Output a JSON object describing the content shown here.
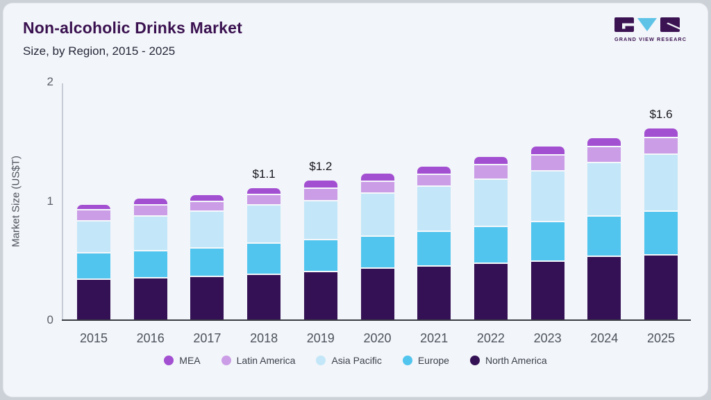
{
  "header": {
    "title": "Non-alcoholic Drinks Market",
    "subtitle": "Size, by Region, 2015 - 2025",
    "brand": {
      "name": "GRAND VIEW RESEARCH",
      "dark_color": "#3b1252",
      "accent_color": "#5fc3e7"
    }
  },
  "chart_data": {
    "type": "bar",
    "stacked": true,
    "title": "Non-alcoholic Drinks Market Size, by Region, 2015 - 2025",
    "xlabel": "",
    "ylabel": "Market Size (US$T)",
    "unit": "US$ trillion",
    "ylim": [
      0,
      2
    ],
    "yticks": [
      0,
      1,
      2
    ],
    "grid": false,
    "legend_position": "bottom",
    "categories": [
      "2015",
      "2016",
      "2017",
      "2018",
      "2019",
      "2020",
      "2021",
      "2022",
      "2023",
      "2024",
      "2025"
    ],
    "series": [
      {
        "name": "MEA",
        "color": "#a34fd1",
        "values": [
          0.05,
          0.06,
          0.06,
          0.06,
          0.07,
          0.07,
          0.07,
          0.07,
          0.08,
          0.08,
          0.08
        ]
      },
      {
        "name": "Latin America",
        "color": "#cb9de7",
        "values": [
          0.09,
          0.09,
          0.08,
          0.09,
          0.1,
          0.1,
          0.1,
          0.12,
          0.13,
          0.13,
          0.14
        ]
      },
      {
        "name": "Asia Pacific",
        "color": "#c3e7f8",
        "values": [
          0.27,
          0.29,
          0.31,
          0.32,
          0.33,
          0.36,
          0.38,
          0.4,
          0.43,
          0.45,
          0.48
        ]
      },
      {
        "name": "Europe",
        "color": "#52c5ef",
        "values": [
          0.22,
          0.23,
          0.24,
          0.26,
          0.27,
          0.27,
          0.29,
          0.31,
          0.33,
          0.34,
          0.37
        ]
      },
      {
        "name": "North America",
        "color": "#341154",
        "values": [
          0.34,
          0.35,
          0.36,
          0.38,
          0.4,
          0.43,
          0.45,
          0.47,
          0.49,
          0.53,
          0.54
        ]
      }
    ],
    "totals_labels": {
      "2018": "$1.1",
      "2019": "$1.2",
      "2025": "$1.6"
    }
  }
}
